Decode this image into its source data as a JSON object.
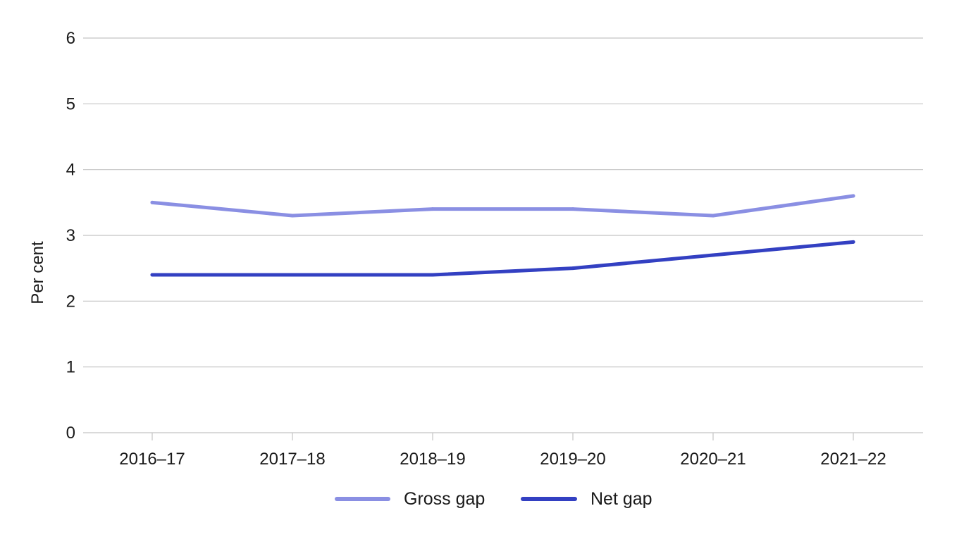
{
  "chart_data": {
    "type": "line",
    "title": "",
    "xlabel": "",
    "ylabel": "Per cent",
    "categories": [
      "2016–17",
      "2017–18",
      "2018–19",
      "2019–20",
      "2020–21",
      "2021–22"
    ],
    "ylim": [
      0,
      6
    ],
    "yticks": [
      "0",
      "1",
      "2",
      "3",
      "4",
      "5",
      "6"
    ],
    "grid": true,
    "legend_position": "bottom-center",
    "series": [
      {
        "name": "Gross gap",
        "color": "#8a8fe3",
        "values": [
          3.5,
          3.3,
          3.4,
          3.4,
          3.3,
          3.6
        ]
      },
      {
        "name": "Net gap",
        "color": "#3340c2",
        "values": [
          2.4,
          2.4,
          2.4,
          2.5,
          2.7,
          2.9
        ]
      }
    ]
  }
}
